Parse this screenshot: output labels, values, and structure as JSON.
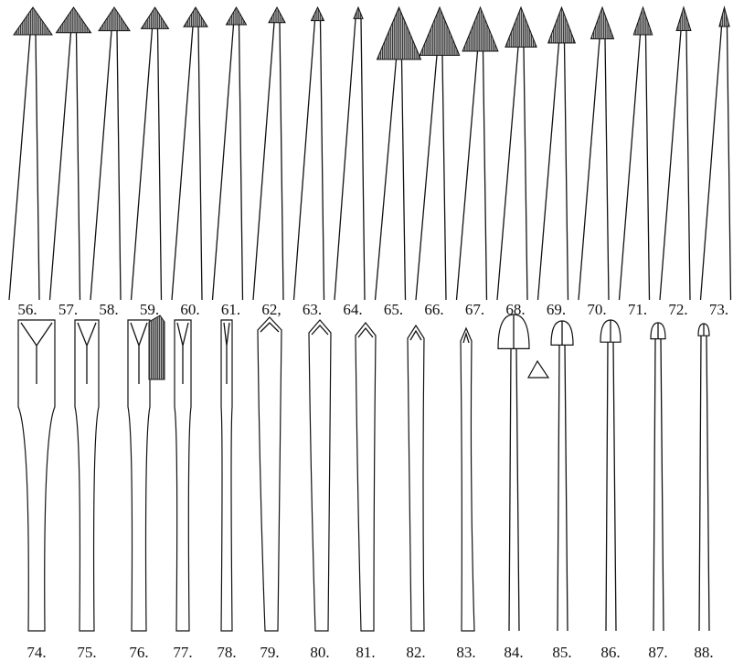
{
  "figures_top": {
    "labels": [
      "56.",
      "57.",
      "58.",
      "59.",
      "60.",
      "61.",
      "62,",
      "63.",
      "64.",
      "65.",
      "66.",
      "67.",
      "68.",
      "69.",
      "70.",
      "71.",
      "72.",
      "73."
    ]
  },
  "figures_bottom": {
    "labels": [
      "74.",
      "75.",
      "76.",
      "77.",
      "78.",
      "79.",
      "80.",
      "81.",
      "82.",
      "83.",
      "84.",
      "85.",
      "86.",
      "87.",
      "88."
    ]
  }
}
